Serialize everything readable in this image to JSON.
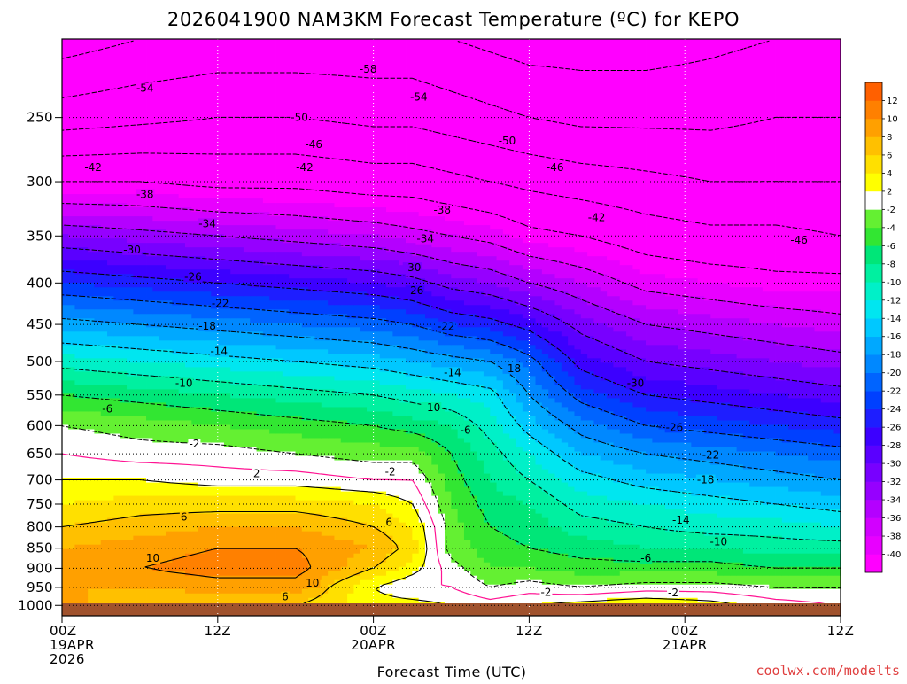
{
  "chart_data": {
    "type": "heatmap",
    "title": "2026041900 NAM3KM Forecast Temperature (ºC) for KEPO",
    "xlabel": "Forecast Time (UTC)",
    "ylabel": "",
    "credit": "coolwx.com/modelts",
    "x_hours_range": [
      0,
      60
    ],
    "x_ticks": [
      {
        "hour": 0,
        "lines": [
          "00Z",
          "19APR",
          "2026"
        ]
      },
      {
        "hour": 12,
        "lines": [
          "12Z"
        ]
      },
      {
        "hour": 24,
        "lines": [
          "00Z",
          "20APR"
        ]
      },
      {
        "hour": 36,
        "lines": [
          "12Z"
        ]
      },
      {
        "hour": 48,
        "lines": [
          "00Z",
          "21APR"
        ]
      },
      {
        "hour": 60,
        "lines": [
          "12Z"
        ]
      }
    ],
    "y_pressure_range": [
      200,
      1030
    ],
    "y_scale": "log",
    "y_ticks": [
      250,
      300,
      350,
      400,
      450,
      500,
      550,
      600,
      650,
      700,
      750,
      800,
      850,
      900,
      950,
      1000
    ],
    "grid": true,
    "colorbar": {
      "bounds": [
        -42,
        -40,
        -38,
        -36,
        -34,
        -32,
        -30,
        -28,
        -26,
        -24,
        -22,
        -20,
        -18,
        -16,
        -14,
        -12,
        -10,
        -8,
        -6,
        -4,
        -2,
        2,
        4,
        6,
        8,
        10,
        12,
        14
      ],
      "colors": [
        "#ff00ff",
        "#e800ff",
        "#d200ff",
        "#b400ff",
        "#9600ff",
        "#7800ff",
        "#5a00ff",
        "#3c00ff",
        "#1e1eff",
        "#0040ff",
        "#0064ff",
        "#0088ff",
        "#00a8ff",
        "#00c8ff",
        "#00e6f0",
        "#00f0c8",
        "#00f0a0",
        "#00e678",
        "#32e632",
        "#64f032",
        "#ffffff",
        "#ffff00",
        "#ffe000",
        "#ffc000",
        "#ffa000",
        "#ff8000",
        "#ff6000"
      ],
      "labels": [
        "-40",
        "-38",
        "-36",
        "-34",
        "-32",
        "-30",
        "-28",
        "-26",
        "-24",
        "-22",
        "-20",
        "-18",
        "-16",
        "-14",
        "-12",
        "-10",
        "-8",
        "-6",
        "-4",
        "-2",
        "2",
        "4",
        "6",
        "8",
        "10",
        "12"
      ]
    },
    "temperature_profile_levels_hpa": [
      200,
      250,
      300,
      350,
      400,
      450,
      500,
      550,
      600,
      650,
      700,
      750,
      800,
      850,
      900,
      950,
      1000
    ],
    "temperature_profiles": [
      {
        "hour": 0,
        "values": [
          -60,
          -52,
          -42,
          -32,
          -24,
          -17,
          -11,
          -6,
          -2,
          0,
          2,
          4,
          6,
          8,
          8,
          8,
          9
        ]
      },
      {
        "hour": 6,
        "values": [
          -58,
          -51,
          -42,
          -33,
          -25,
          -18,
          -12,
          -7,
          -3,
          -1,
          2,
          5,
          7,
          9,
          10,
          8,
          6
        ]
      },
      {
        "hour": 12,
        "values": [
          -57,
          -50,
          -43,
          -34,
          -26,
          -19,
          -13,
          -8,
          -4,
          -1,
          1,
          5,
          8,
          10,
          11,
          9,
          6
        ]
      },
      {
        "hour": 18,
        "values": [
          -57,
          -50,
          -43,
          -35,
          -27,
          -20,
          -14,
          -9,
          -5,
          -2,
          1,
          5,
          8,
          10,
          11,
          9,
          6
        ]
      },
      {
        "hour": 24,
        "values": [
          -57,
          -51,
          -44,
          -36,
          -28,
          -21,
          -15,
          -10,
          -6,
          -3,
          0,
          4,
          6,
          8,
          6,
          2,
          3
        ]
      },
      {
        "hour": 27,
        "values": [
          -57,
          -51,
          -44,
          -37,
          -29,
          -22,
          -16,
          -11,
          -7,
          -3,
          0,
          2,
          4,
          5,
          3,
          0,
          3
        ]
      },
      {
        "hour": 30,
        "values": [
          -58,
          -52,
          -45,
          -38,
          -31,
          -24,
          -17,
          -12,
          -8,
          -6,
          -5,
          -4,
          -3,
          -3,
          -1,
          0,
          2
        ]
      },
      {
        "hour": 33,
        "values": [
          -59,
          -53,
          -46,
          -39,
          -32,
          -25,
          -18,
          -13,
          -11,
          -9,
          -8,
          -7,
          -6,
          -5,
          -4,
          -2,
          1
        ]
      },
      {
        "hour": 36,
        "values": [
          -60,
          -54,
          -47,
          -41,
          -34,
          -27,
          -21,
          -18,
          -15,
          -12,
          -10,
          -8,
          -7,
          -6,
          -4,
          -1,
          2
        ]
      },
      {
        "hour": 40,
        "values": [
          -60,
          -55,
          -48,
          -42,
          -36,
          -31,
          -27,
          -23,
          -19,
          -16,
          -13,
          -11,
          -9,
          -7,
          -5,
          -2,
          3
        ]
      },
      {
        "hour": 45,
        "values": [
          -60,
          -55,
          -49,
          -44,
          -39,
          -34,
          -30,
          -26,
          -22,
          -18,
          -15,
          -12,
          -10,
          -8,
          -5,
          -1,
          4
        ]
      },
      {
        "hour": 50,
        "values": [
          -59,
          -55,
          -50,
          -45,
          -40,
          -35,
          -31,
          -27,
          -23,
          -19,
          -16,
          -13,
          -11,
          -8,
          -5,
          -1,
          3
        ]
      },
      {
        "hour": 55,
        "values": [
          -58,
          -54,
          -50,
          -45,
          -41,
          -36,
          -32,
          -28,
          -24,
          -20,
          -17,
          -14,
          -11,
          -9,
          -6,
          -2,
          1
        ]
      },
      {
        "hour": 60,
        "values": [
          -58,
          -54,
          -50,
          -46,
          -41,
          -37,
          -33,
          -29,
          -25,
          -21,
          -18,
          -15,
          -12,
          -9,
          -6,
          -2,
          0
        ]
      }
    ],
    "contour_labels": [
      {
        "text": "-58",
        "hour": 23.6,
        "p": 218
      },
      {
        "text": "-54",
        "hour": 6.4,
        "p": 230
      },
      {
        "text": "-54",
        "hour": 27.5,
        "p": 236
      },
      {
        "text": "-50",
        "hour": 18.3,
        "p": 250
      },
      {
        "text": "-50",
        "hour": 34.3,
        "p": 267
      },
      {
        "text": "-46",
        "hour": 19.4,
        "p": 270
      },
      {
        "text": "-46",
        "hour": 38.0,
        "p": 288
      },
      {
        "text": "-46",
        "hour": 56.8,
        "p": 354
      },
      {
        "text": "-42",
        "hour": 2.4,
        "p": 288
      },
      {
        "text": "-42",
        "hour": 18.7,
        "p": 288
      },
      {
        "text": "-42",
        "hour": 41.2,
        "p": 332
      },
      {
        "text": "-38",
        "hour": 6.4,
        "p": 311
      },
      {
        "text": "-38",
        "hour": 29.3,
        "p": 325
      },
      {
        "text": "-34",
        "hour": 11.2,
        "p": 338
      },
      {
        "text": "-34",
        "hour": 28.0,
        "p": 353
      },
      {
        "text": "-30",
        "hour": 5.4,
        "p": 364
      },
      {
        "text": "-30",
        "hour": 27.0,
        "p": 383
      },
      {
        "text": "-30",
        "hour": 44.2,
        "p": 532
      },
      {
        "text": "-26",
        "hour": 10.1,
        "p": 393
      },
      {
        "text": "-26",
        "hour": 27.2,
        "p": 409
      },
      {
        "text": "-26",
        "hour": 47.2,
        "p": 603
      },
      {
        "text": "-22",
        "hour": 12.2,
        "p": 424
      },
      {
        "text": "-22",
        "hour": 29.6,
        "p": 453
      },
      {
        "text": "-22",
        "hour": 50.0,
        "p": 652
      },
      {
        "text": "-18",
        "hour": 11.2,
        "p": 452
      },
      {
        "text": "-18",
        "hour": 34.7,
        "p": 510
      },
      {
        "text": "-18",
        "hour": 49.6,
        "p": 700
      },
      {
        "text": "-14",
        "hour": 12.1,
        "p": 486
      },
      {
        "text": "-14",
        "hour": 30.1,
        "p": 516
      },
      {
        "text": "-14",
        "hour": 47.7,
        "p": 785
      },
      {
        "text": "-10",
        "hour": 9.4,
        "p": 532
      },
      {
        "text": "-10",
        "hour": 28.5,
        "p": 570
      },
      {
        "text": "-10",
        "hour": 50.6,
        "p": 835
      },
      {
        "text": "-6",
        "hour": 3.5,
        "p": 572
      },
      {
        "text": "-6",
        "hour": 31.1,
        "p": 608
      },
      {
        "text": "-6",
        "hour": 45.0,
        "p": 875
      },
      {
        "text": "-2",
        "hour": 10.2,
        "p": 632
      },
      {
        "text": "-2",
        "hour": 25.3,
        "p": 684
      },
      {
        "text": "-2",
        "hour": 37.3,
        "p": 963
      },
      {
        "text": "-2",
        "hour": 47.1,
        "p": 965
      },
      {
        "text": "2",
        "hour": 15.0,
        "p": 688
      },
      {
        "text": "6",
        "hour": 9.4,
        "p": 778
      },
      {
        "text": "6",
        "hour": 25.2,
        "p": 790
      },
      {
        "text": "6",
        "hour": 17.2,
        "p": 976
      },
      {
        "text": "10",
        "hour": 7.0,
        "p": 875
      },
      {
        "text": "10",
        "hour": 19.3,
        "p": 938
      }
    ]
  }
}
